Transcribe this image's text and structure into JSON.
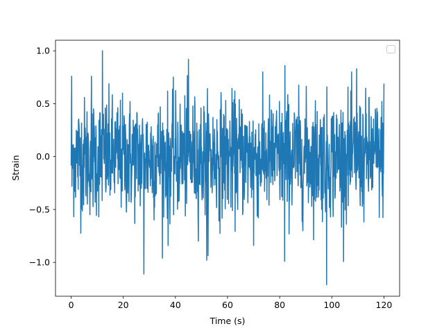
{
  "chart_data": {
    "type": "line",
    "title": "",
    "xlabel": "Time (s)",
    "ylabel": "Strain",
    "xlim": [
      -6,
      126
    ],
    "ylim": [
      -1.32,
      1.1
    ],
    "xticks": [
      0,
      20,
      40,
      60,
      80,
      100,
      120
    ],
    "yticks": [
      -1.0,
      -0.5,
      0.0,
      0.5,
      1.0
    ],
    "xtick_labels": [
      "0",
      "20",
      "40",
      "60",
      "80",
      "100",
      "120"
    ],
    "ytick_labels": [
      "−1.0",
      "−0.5",
      "0.0",
      "0.5",
      "1.0"
    ],
    "grid": false,
    "legend": {
      "placement": "upper-right",
      "entries": []
    },
    "series": [
      {
        "color": "#1f77b4",
        "x_range": [
          0,
          120
        ],
        "samples_per_second": 10,
        "envelope_min": -1.21,
        "envelope_max": 1.0,
        "typical_amplitude": 0.4,
        "notable_points": [
          {
            "x": 0.2,
            "y": 0.76
          },
          {
            "x": 0.3,
            "y": -0.28
          },
          {
            "x": 7.8,
            "y": 0.76
          },
          {
            "x": 12.0,
            "y": 1.0
          },
          {
            "x": 27.9,
            "y": -1.11
          },
          {
            "x": 37.2,
            "y": -0.84
          },
          {
            "x": 45.0,
            "y": 0.92
          },
          {
            "x": 52.0,
            "y": -0.98
          },
          {
            "x": 70.0,
            "y": -0.84
          },
          {
            "x": 81.9,
            "y": -0.99
          },
          {
            "x": 82.0,
            "y": 0.86
          },
          {
            "x": 98.0,
            "y": -1.21
          },
          {
            "x": 109.5,
            "y": 0.83
          },
          {
            "x": 120.0,
            "y": 0.69
          }
        ]
      }
    ]
  }
}
